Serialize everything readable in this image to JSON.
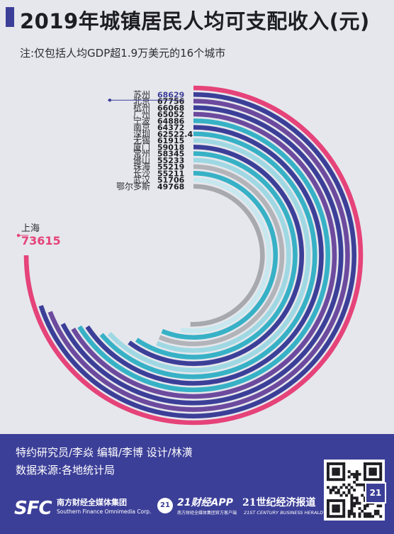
{
  "title": "2019年城镇居民人均可支配收入(元)",
  "note": "注:仅包括人均GDP超1.9万美元的16个城市",
  "chart_data": {
    "type": "radial-bar",
    "title": "2019年城镇居民人均可支配收入(元)",
    "categories": [
      "上海",
      "苏州",
      "北京",
      "杭州",
      "广州",
      "宁波",
      "南京",
      "深圳",
      "无锡",
      "厦门",
      "常州",
      "佛山",
      "珠海",
      "长沙",
      "武汉",
      "鄂尔多斯"
    ],
    "values": [
      73615,
      68629,
      67756,
      66068,
      65052,
      64886,
      64372,
      62522.4,
      61915,
      59018,
      58345,
      55233,
      55219,
      55211,
      51706,
      49768
    ],
    "value_labels": [
      "73615",
      "68629",
      "67756",
      "66068",
      "65052",
      "64886",
      "64372",
      "62522.4",
      "61915",
      "59018",
      "58345",
      "55233",
      "55219",
      "55211",
      "51706",
      "49768"
    ],
    "colors": [
      "#e54379",
      "#3c3f98",
      "#6c4a9e",
      "#3c3f98",
      "#6c4a9e",
      "#37b1c6",
      "#3c3f98",
      "#37b1c6",
      "#9fd8e3",
      "#3c3f98",
      "#37b1c6",
      "#9fd8e3",
      "#b2b4ba",
      "#37b1c6",
      "#c8e7ee",
      "#a7a9ae"
    ]
  },
  "footer": {
    "credits_line1": "特约研究员/李焱  编辑/李博  设计/林潢",
    "credits_line2": "数据来源:各地统计局",
    "sfc_logo": "SFC",
    "sfc_name": "南方财经全媒体集团",
    "sfc_name_en": "Southern Finance Omnimedia Corp.",
    "app_badge": "21",
    "app_name": "21财经APP",
    "app_tagline": "南方财经全媒体集团官方客户端",
    "herald_name": "21世纪经济报道",
    "herald_name_en": "21ST CENTURY BUSINESS HERALD",
    "qr_badge": "21"
  }
}
